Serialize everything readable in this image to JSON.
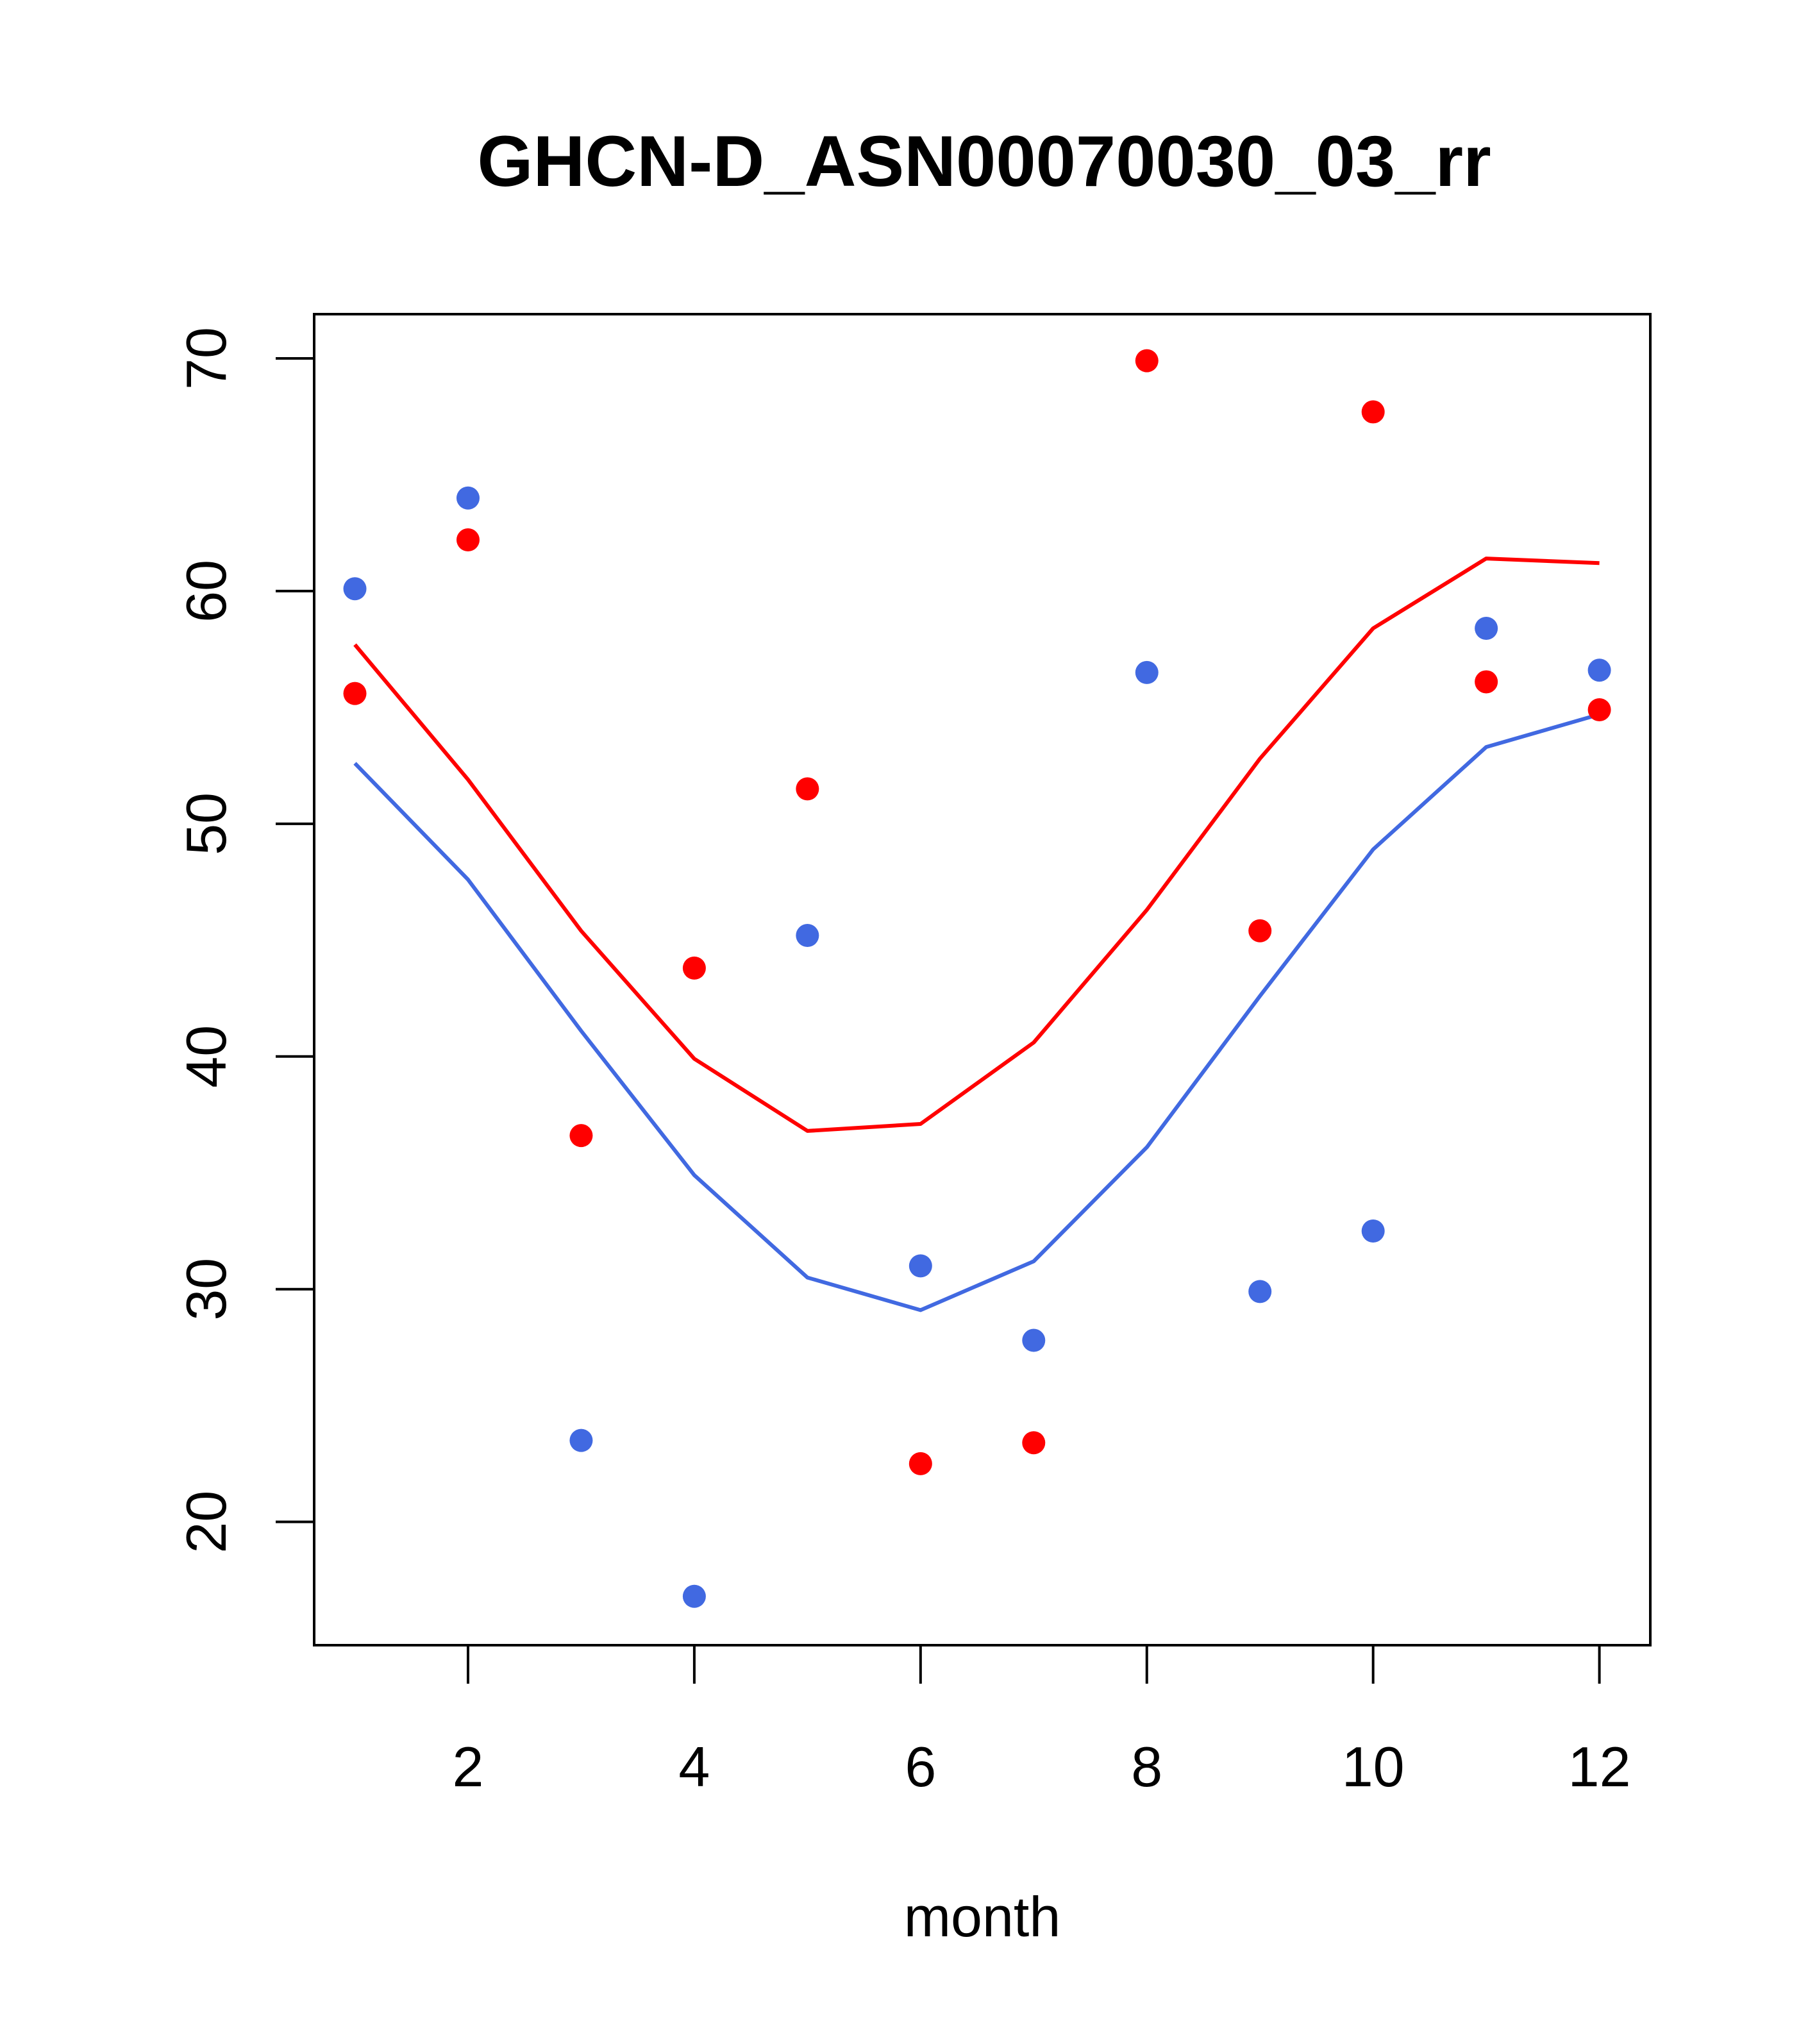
{
  "chart_data": {
    "type": "line",
    "title": "GHCN-D_ASN00070030_03_rr",
    "xlabel": "month",
    "ylabel": "",
    "xlim": [
      0.64,
      12.45
    ],
    "ylim": [
      14.7,
      71.9
    ],
    "x_ticks": [
      2,
      4,
      6,
      8,
      10,
      12
    ],
    "y_ticks": [
      20,
      30,
      40,
      50,
      60,
      70
    ],
    "grid": false,
    "legend": "none",
    "series": [
      {
        "kind": "line",
        "color": "#ff0000",
        "x": [
          1,
          2,
          3,
          4,
          5,
          6,
          7,
          8,
          9,
          10,
          11,
          12
        ],
        "values": [
          57.7,
          51.9,
          45.4,
          39.9,
          36.8,
          37.1,
          40.6,
          46.3,
          52.8,
          58.4,
          61.4,
          61.2
        ]
      },
      {
        "kind": "line",
        "color": "#4169e1",
        "x": [
          1,
          2,
          3,
          4,
          5,
          6,
          7,
          8,
          9,
          10,
          11,
          12
        ],
        "values": [
          52.6,
          47.6,
          41.1,
          34.9,
          30.5,
          29.1,
          31.2,
          36.1,
          42.6,
          48.9,
          53.3,
          54.7
        ]
      },
      {
        "kind": "points",
        "color": "#ff0000",
        "x": [
          1,
          2,
          3,
          4,
          5,
          6,
          7,
          8,
          9,
          10,
          11,
          12
        ],
        "values": [
          55.6,
          62.2,
          36.6,
          43.8,
          51.5,
          22.5,
          23.4,
          69.9,
          45.4,
          67.7,
          56.1,
          54.9
        ]
      },
      {
        "kind": "points",
        "color": "#4169e1",
        "x": [
          1,
          2,
          3,
          4,
          5,
          6,
          7,
          8,
          9,
          10,
          11,
          12
        ],
        "values": [
          60.1,
          64.0,
          23.5,
          16.8,
          45.2,
          31.0,
          27.8,
          56.5,
          29.9,
          32.5,
          58.4,
          56.6
        ]
      }
    ]
  }
}
